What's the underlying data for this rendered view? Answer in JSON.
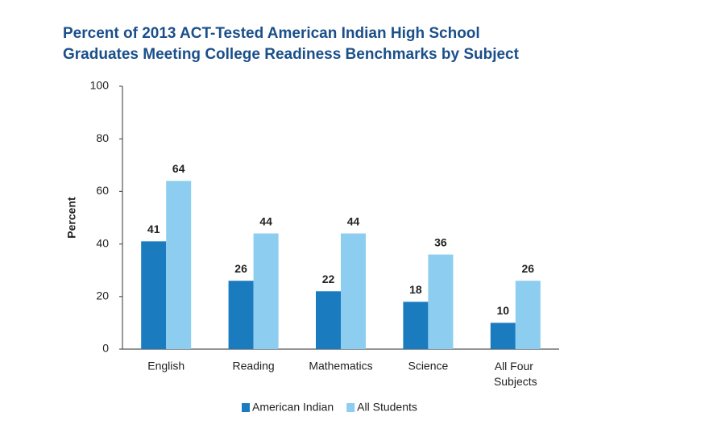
{
  "chart_data": {
    "type": "bar",
    "title": [
      "Percent of 2013 ACT-Tested American Indian High School",
      "Graduates Meeting College Readiness Benchmarks by Subject"
    ],
    "y_label": "Percent",
    "categories": [
      "English",
      "Reading",
      "Mathematics",
      "Science",
      "All Four Subjects"
    ],
    "series": [
      {
        "name": "American Indian",
        "color": "#1a7bbf",
        "values": [
          41,
          26,
          22,
          18,
          10
        ]
      },
      {
        "name": "All Students",
        "color": "#8dcdf0",
        "values": [
          64,
          44,
          44,
          36,
          26
        ]
      }
    ],
    "ylim": [
      0,
      100
    ],
    "yticks": [
      0,
      20,
      40,
      60,
      80,
      100
    ],
    "grid": false,
    "legend": "bottom"
  }
}
